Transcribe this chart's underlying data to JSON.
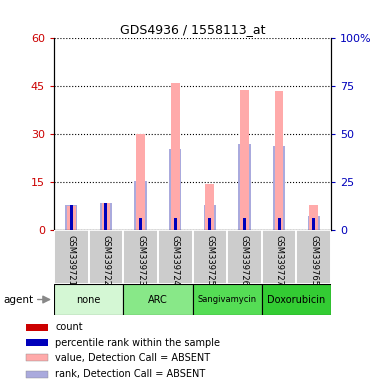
{
  "title": "GDS4936 / 1558113_at",
  "samples": [
    "GSM339721",
    "GSM339722",
    "GSM339723",
    "GSM339724",
    "GSM339725",
    "GSM339726",
    "GSM339727",
    "GSM339765"
  ],
  "agents": [
    {
      "label": "none",
      "color": "#d4f7d4",
      "samples": [
        0,
        1
      ]
    },
    {
      "label": "ARC",
      "color": "#88e888",
      "samples": [
        2,
        3
      ]
    },
    {
      "label": "Sangivamycin",
      "color": "#55dd55",
      "samples": [
        4,
        5
      ]
    },
    {
      "label": "Doxorubicin",
      "color": "#33cc33",
      "samples": [
        6,
        7
      ]
    }
  ],
  "value_absent": [
    7.5,
    8.5,
    30.0,
    46.0,
    14.5,
    44.0,
    43.5,
    8.0
  ],
  "rank_absent": [
    8.0,
    8.5,
    15.5,
    25.5,
    8.0,
    27.0,
    26.5,
    4.5
  ],
  "count_values": [
    7.5,
    8.5,
    4.0,
    4.0,
    4.0,
    4.0,
    4.0,
    4.0
  ],
  "percentile_values": [
    8.0,
    8.5,
    4.0,
    4.0,
    4.0,
    4.0,
    4.0,
    4.0
  ],
  "ylim_left": [
    0,
    60
  ],
  "ylim_right": [
    0,
    100
  ],
  "yticks_left": [
    0,
    15,
    30,
    45,
    60
  ],
  "ytick_labels_left": [
    "0",
    "15",
    "30",
    "45",
    "60"
  ],
  "yticks_right": [
    0,
    25,
    50,
    75,
    100
  ],
  "ytick_labels_right": [
    "0",
    "25",
    "50",
    "75",
    "100%"
  ],
  "color_count": "#cc0000",
  "color_percentile": "#0000bb",
  "color_value_absent": "#ffaaaa",
  "color_rank_absent": "#aaaadd",
  "bar_width": 0.25,
  "rank_bar_width": 0.35,
  "legend_items": [
    {
      "label": "count",
      "color": "#cc0000"
    },
    {
      "label": "percentile rank within the sample",
      "color": "#0000bb"
    },
    {
      "label": "value, Detection Call = ABSENT",
      "color": "#ffaaaa"
    },
    {
      "label": "rank, Detection Call = ABSENT",
      "color": "#aaaadd"
    }
  ],
  "agent_label": "agent",
  "sample_row_color": "#cccccc",
  "figsize": [
    3.85,
    3.84
  ],
  "dpi": 100
}
